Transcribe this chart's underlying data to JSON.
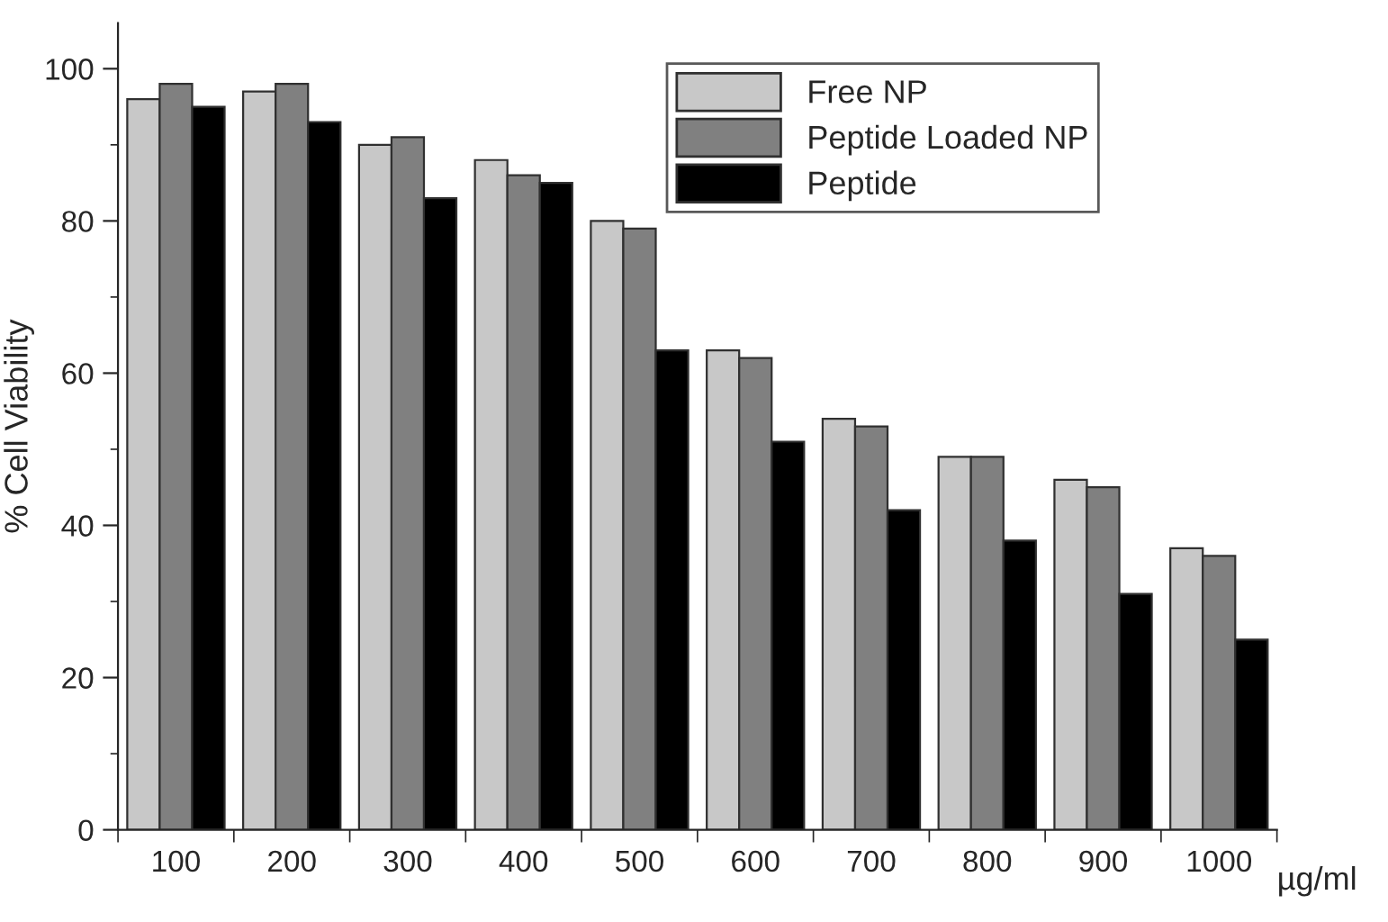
{
  "chart_data": {
    "type": "bar",
    "xlabel": "µg/ml",
    "ylabel": "% Cell Viability",
    "categories": [
      "100",
      "200",
      "300",
      "400",
      "500",
      "600",
      "700",
      "800",
      "900",
      "1000"
    ],
    "series": [
      {
        "name": "Free NP",
        "color": "#c8c8c8",
        "values": [
          96,
          97,
          90,
          88,
          80,
          63,
          54,
          49,
          46,
          37
        ]
      },
      {
        "name": "Peptide Loaded NP",
        "color": "#808080",
        "values": [
          98,
          98,
          91,
          86,
          79,
          62,
          53,
          49,
          45,
          36
        ]
      },
      {
        "name": "Peptide",
        "color": "#000000",
        "values": [
          95,
          93,
          83,
          85,
          63,
          51,
          42,
          38,
          31,
          25
        ]
      }
    ],
    "ylim": [
      0,
      106
    ],
    "yticks": [
      0,
      20,
      40,
      60,
      80,
      100
    ],
    "grid": false,
    "legend": "top right"
  }
}
